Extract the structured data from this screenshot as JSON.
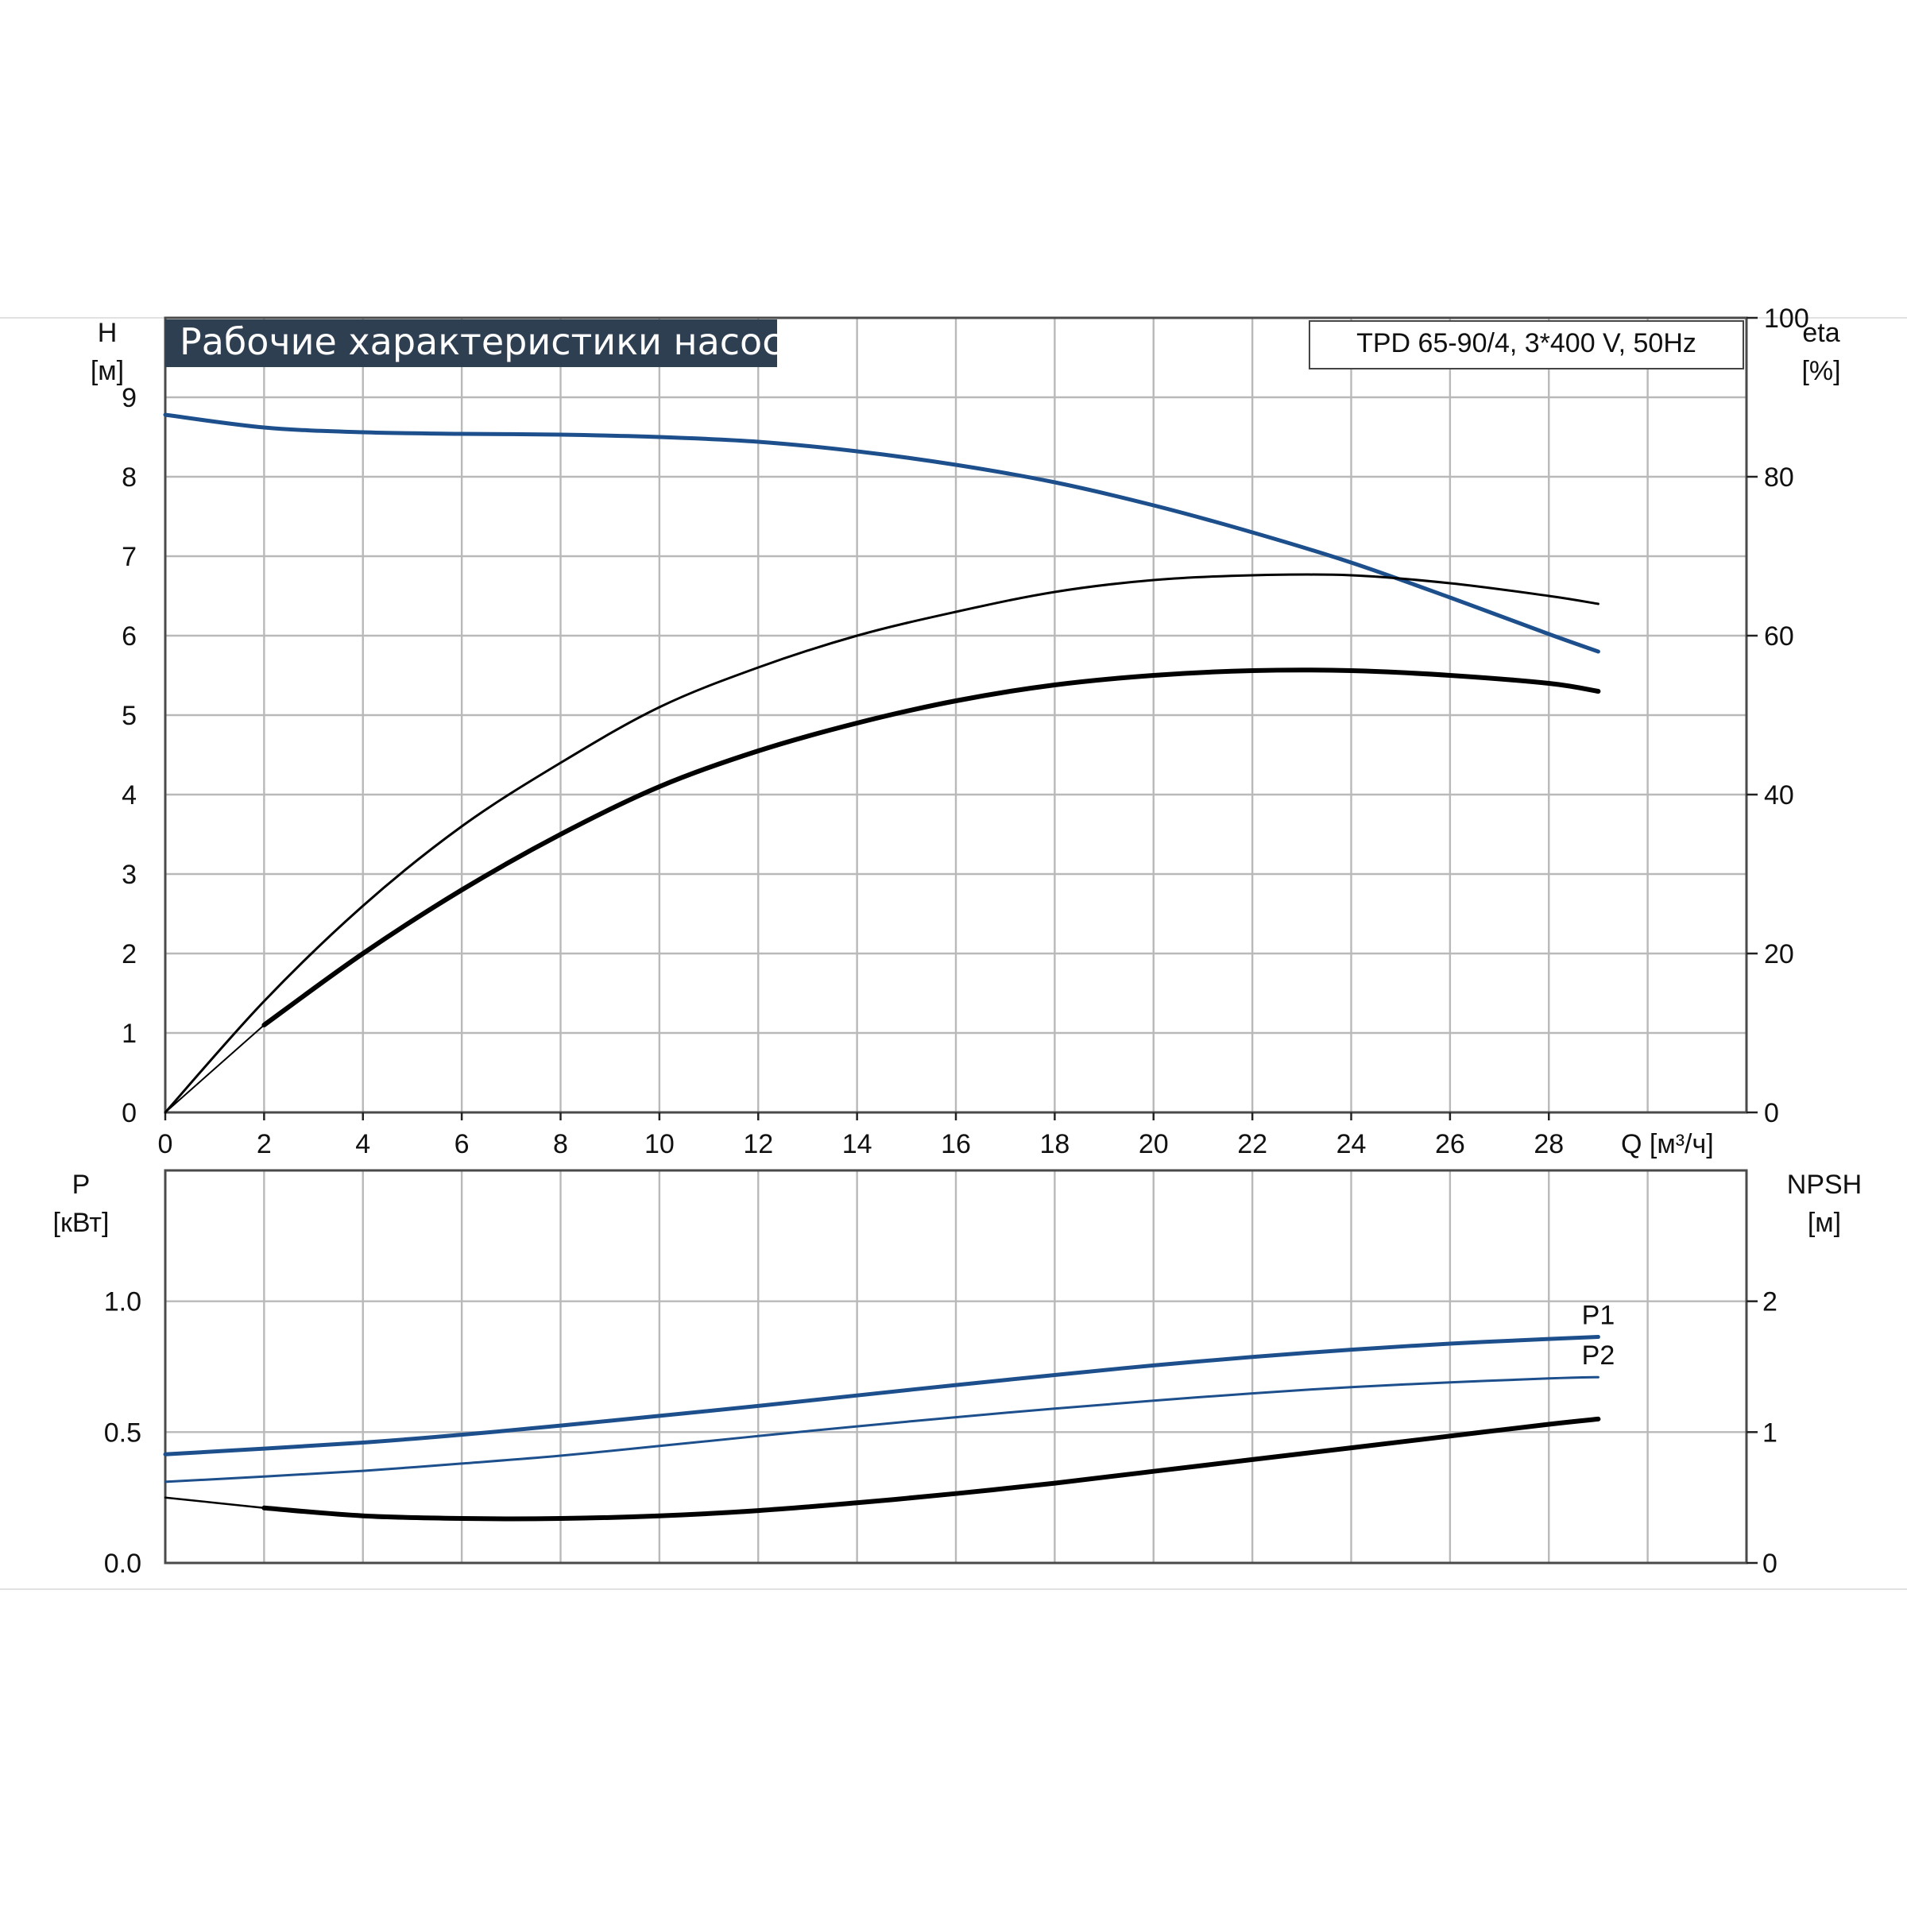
{
  "chart_data": [
    {
      "type": "line",
      "title": "Рабочие характеристики насоса",
      "subtitle": "TPD 65-90/4, 3*400 V, 50Hz",
      "xlabel": "Q [м³/ч]",
      "ylabel": "H",
      "ylabel_unit": "[м]",
      "y2label": "eta",
      "y2label_unit": "[%]",
      "xlim": [
        0,
        32
      ],
      "ylim": [
        0,
        10
      ],
      "y2lim": [
        0,
        100
      ],
      "x_ticks": [
        "0",
        "2",
        "4",
        "6",
        "8",
        "10",
        "12",
        "14",
        "16",
        "18",
        "20",
        "22",
        "24",
        "26",
        "28"
      ],
      "y_ticks": [
        "0",
        "1",
        "2",
        "3",
        "4",
        "5",
        "6",
        "7",
        "8",
        "9"
      ],
      "y2_ticks": [
        "0",
        "20",
        "40",
        "60",
        "80",
        "100"
      ],
      "grid": true,
      "colors": {
        "H": "#1c4f8c",
        "eta": "#000000",
        "frame": "#4a4a4a",
        "title_bg": "#2f3f52"
      },
      "series": [
        {
          "axis": "left",
          "color": "#1c4f8c",
          "width": 5,
          "x": [
            0,
            2,
            4,
            6,
            8,
            10,
            12,
            14,
            16,
            18,
            20,
            22,
            24,
            26,
            28,
            29
          ],
          "y": [
            8.78,
            8.62,
            8.56,
            8.54,
            8.53,
            8.5,
            8.44,
            8.32,
            8.15,
            7.93,
            7.64,
            7.3,
            6.92,
            6.48,
            6.02,
            5.8
          ]
        },
        {
          "axis": "right",
          "color": "#000000",
          "width": 3,
          "x": [
            0,
            2,
            4,
            6,
            8,
            10,
            12,
            14,
            16,
            18,
            20,
            22,
            24,
            26,
            28,
            29
          ],
          "y": [
            0,
            14,
            26,
            36,
            44,
            51,
            56,
            60,
            63,
            65.5,
            67,
            67.6,
            67.6,
            66.6,
            65,
            64
          ]
        },
        {
          "axis": "right",
          "color": "#000000",
          "width": 6,
          "x": [
            2,
            4,
            6,
            8,
            10,
            12,
            14,
            16,
            18,
            20,
            22,
            24,
            26,
            28,
            29
          ],
          "y": [
            11,
            20,
            28,
            35,
            41,
            45.5,
            49,
            51.8,
            53.8,
            55,
            55.6,
            55.6,
            55,
            54,
            53
          ]
        },
        {
          "axis": "right",
          "color": "#000000",
          "width": 2,
          "x": [
            0,
            2
          ],
          "y": [
            0,
            11
          ]
        }
      ]
    },
    {
      "type": "line",
      "xlabel": "",
      "ylabel": "P",
      "ylabel_unit": "[кВт]",
      "y2label": "NPSH",
      "y2label_unit": "[м]",
      "xlim": [
        0,
        32
      ],
      "ylim": [
        0,
        1.5
      ],
      "y2lim": [
        0,
        3
      ],
      "y_ticks": [
        "0.0",
        "0.5",
        "1.0"
      ],
      "y2_ticks": [
        "0",
        "1",
        "2"
      ],
      "grid": true,
      "series": [
        {
          "name": "P1",
          "axis": "left",
          "color": "#1c4f8c",
          "width": 5,
          "x": [
            0,
            2,
            4,
            6,
            8,
            10,
            12,
            14,
            16,
            18,
            20,
            22,
            24,
            26,
            28,
            29
          ],
          "y": [
            0.415,
            0.437,
            0.46,
            0.49,
            0.525,
            0.562,
            0.6,
            0.64,
            0.68,
            0.718,
            0.755,
            0.787,
            0.815,
            0.838,
            0.856,
            0.864
          ]
        },
        {
          "name": "P2",
          "axis": "left",
          "color": "#1c4f8c",
          "width": 3,
          "x": [
            0,
            2,
            4,
            6,
            8,
            10,
            12,
            14,
            16,
            18,
            20,
            22,
            24,
            26,
            28,
            29
          ],
          "y": [
            0.31,
            0.33,
            0.352,
            0.38,
            0.41,
            0.447,
            0.485,
            0.522,
            0.557,
            0.59,
            0.62,
            0.648,
            0.672,
            0.69,
            0.705,
            0.71
          ]
        },
        {
          "axis": "right",
          "color": "#000000",
          "width": 2.5,
          "x": [
            0,
            2
          ],
          "y": [
            0.5,
            0.42
          ]
        },
        {
          "axis": "right",
          "color": "#000000",
          "width": 6,
          "x": [
            2,
            4,
            6,
            8,
            10,
            12,
            14,
            16,
            18,
            20,
            22,
            24,
            26,
            28,
            29
          ],
          "y": [
            0.42,
            0.36,
            0.34,
            0.34,
            0.36,
            0.4,
            0.46,
            0.53,
            0.61,
            0.7,
            0.79,
            0.88,
            0.97,
            1.06,
            1.1
          ]
        }
      ]
    }
  ]
}
